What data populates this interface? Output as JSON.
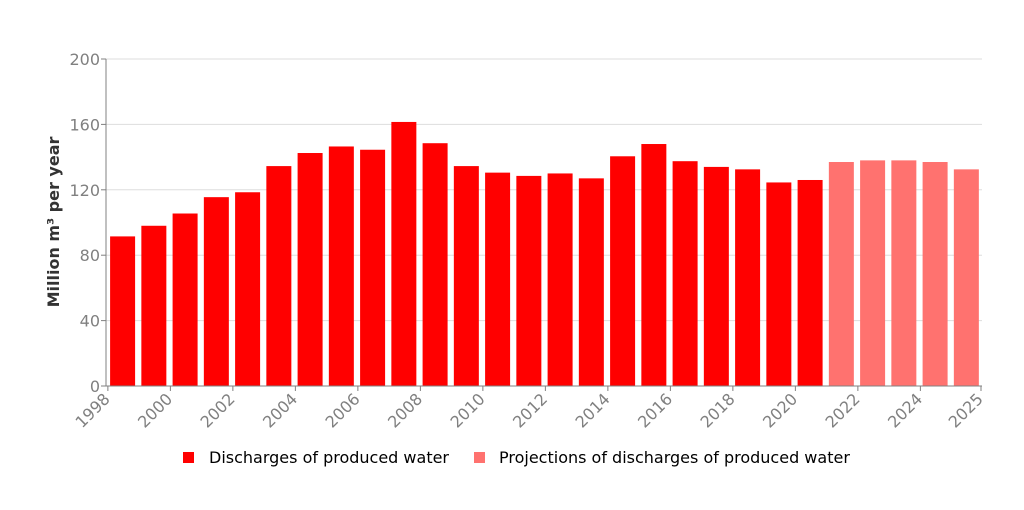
{
  "chart_data": {
    "type": "bar",
    "ylabel": "Million m³ per year",
    "ylim": [
      0,
      200
    ],
    "yticks": [
      0,
      40,
      80,
      120,
      160,
      200
    ],
    "grid": true,
    "legend_position": "bottom-center",
    "categories": [
      1998,
      1999,
      2000,
      2001,
      2002,
      2003,
      2004,
      2005,
      2006,
      2007,
      2008,
      2009,
      2010,
      2011,
      2012,
      2013,
      2014,
      2015,
      2016,
      2017,
      2018,
      2019,
      2020,
      2021,
      2022,
      2023,
      2024,
      2025
    ],
    "xtick_labels": [
      "1998",
      "2000",
      "2002",
      "2004",
      "2006",
      "2008",
      "2010",
      "2012",
      "2014",
      "2016",
      "2018",
      "2020",
      "2022",
      "2024",
      "2025"
    ],
    "series": [
      {
        "name": "Discharges of produced water",
        "color": "#ff0000",
        "x": [
          1998,
          1999,
          2000,
          2001,
          2002,
          2003,
          2004,
          2005,
          2006,
          2007,
          2008,
          2009,
          2010,
          2011,
          2012,
          2013,
          2014,
          2015,
          2016,
          2017,
          2018,
          2019,
          2020
        ],
        "values": [
          91.5,
          98,
          105.5,
          115.5,
          118.5,
          134.5,
          142.5,
          146.5,
          144.5,
          161.5,
          148.5,
          134.5,
          130.5,
          128.5,
          130,
          127,
          140.5,
          148,
          137.5,
          134,
          132.5,
          124.5,
          126
        ]
      },
      {
        "name": "Projections of discharges of produced water",
        "color": "#ff726f",
        "x": [
          2021,
          2022,
          2023,
          2024,
          2025
        ],
        "values": [
          137,
          138,
          138,
          137,
          132.5
        ]
      }
    ]
  }
}
